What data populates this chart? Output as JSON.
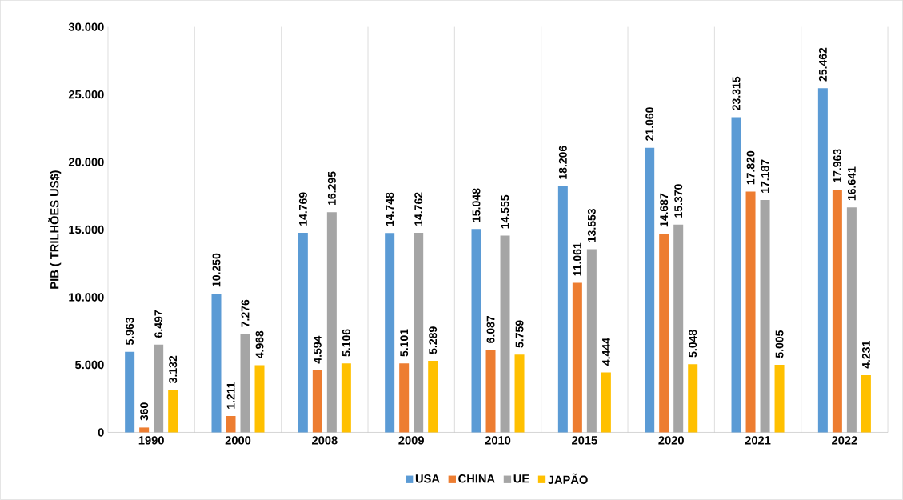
{
  "chart_data": {
    "type": "bar",
    "ylabel": "PIB ( TRILHÕES US$)",
    "categories": [
      "1990",
      "2000",
      "2008",
      "2009",
      "2010",
      "2015",
      "2020",
      "2021",
      "2022"
    ],
    "series": [
      {
        "name": "USA",
        "color": "#5b9bd5",
        "values": [
          5963,
          10250,
          14769,
          14748,
          15048,
          18206,
          21060,
          23315,
          25462
        ],
        "value_labels": [
          "5.963",
          "10.250",
          "14.769",
          "14.748",
          "15.048",
          "18.206",
          "21.060",
          "23.315",
          "25.462"
        ]
      },
      {
        "name": "CHINA",
        "color": "#ed7d31",
        "values": [
          360,
          1211,
          4594,
          5101,
          6087,
          11061,
          14687,
          17820,
          17963
        ],
        "value_labels": [
          "360",
          "1.211",
          "4.594",
          "5.101",
          "6.087",
          "11.061",
          "14.687",
          "17.820",
          "17.963"
        ]
      },
      {
        "name": "UE",
        "color": "#a5a5a5",
        "values": [
          6497,
          7276,
          16295,
          14762,
          14555,
          13553,
          15370,
          17187,
          16641
        ],
        "value_labels": [
          "6.497",
          "7.276",
          "16.295",
          "14.762",
          "14.555",
          "13.553",
          "15.370",
          "17.187",
          "16.641"
        ]
      },
      {
        "name": "JAPÃO",
        "color": "#ffc000",
        "values": [
          3132,
          4968,
          5106,
          5289,
          5759,
          4444,
          5048,
          5005,
          4231
        ],
        "value_labels": [
          "3.132",
          "4.968",
          "5.106",
          "5.289",
          "5.759",
          "4.444",
          "5.048",
          "5.005",
          "4.231"
        ]
      }
    ],
    "ylim": [
      0,
      30000
    ],
    "yticks": [
      0,
      {
        "value": 5000,
        "label": "5.000"
      },
      {
        "value": 10000,
        "label": "10.000"
      },
      {
        "value": 15000,
        "label": "15.000"
      },
      {
        "value": 20000,
        "label": "20.000"
      },
      {
        "value": 25000,
        "label": "25.000"
      },
      {
        "value": 30000,
        "label": "30.000"
      }
    ],
    "grid": "x",
    "legend": "bottom"
  }
}
